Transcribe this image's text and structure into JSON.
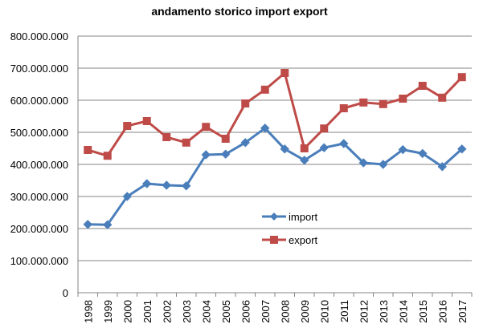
{
  "chart_data": {
    "type": "line",
    "title": "andamento storico import export",
    "xlabel": "",
    "ylabel": "",
    "categories": [
      "1998",
      "1999",
      "2000",
      "2001",
      "2002",
      "2003",
      "2004",
      "2005",
      "2006",
      "2007",
      "2008",
      "2009",
      "2010",
      "2011",
      "2012",
      "2013",
      "2014",
      "2015",
      "2016",
      "2017"
    ],
    "ylim": [
      0,
      800000000
    ],
    "y_ticks": [
      "0",
      "100.000.000",
      "200.000.000",
      "300.000.000",
      "400.000.000",
      "500.000.000",
      "600.000.000",
      "700.000.000",
      "800.000.000"
    ],
    "grid": true,
    "legend_position": "center-right",
    "series": [
      {
        "name": "import",
        "color": "#4A7EBB",
        "marker": "diamond",
        "values": [
          213000000,
          212000000,
          300000000,
          340000000,
          335000000,
          333000000,
          430000000,
          432000000,
          468000000,
          513000000,
          448000000,
          413000000,
          452000000,
          465000000,
          405000000,
          400000000,
          446000000,
          434000000,
          393000000,
          448000000
        ]
      },
      {
        "name": "export",
        "color": "#BE4B48",
        "marker": "square",
        "values": [
          445000000,
          427000000,
          520000000,
          535000000,
          485000000,
          468000000,
          517000000,
          480000000,
          590000000,
          633000000,
          685000000,
          450000000,
          512000000,
          575000000,
          593000000,
          588000000,
          605000000,
          645000000,
          608000000,
          672000000
        ]
      }
    ]
  }
}
